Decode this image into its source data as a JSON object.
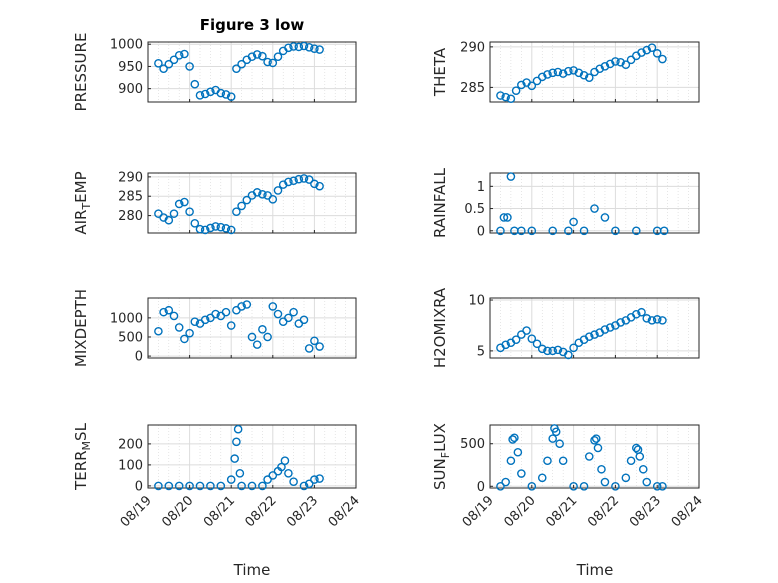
{
  "figure_title": "Figure 3 low",
  "xlabel": "Time",
  "x_ticklabels": [
    "08/19",
    "08/20",
    "08/21",
    "08/22",
    "08/23",
    "08/24"
  ],
  "marker_color": "#0072BD",
  "chart_data": [
    {
      "type": "scatter",
      "ylabel": "PRESSURE",
      "xlim": [
        "08/19",
        "08/24"
      ],
      "ylim": [
        870,
        1005
      ],
      "yticks": [
        900,
        950,
        1000
      ],
      "grid": "on",
      "x": [
        "08/19 06:00",
        "08/19 09:00",
        "08/19 12:00",
        "08/19 15:00",
        "08/19 18:00",
        "08/19 21:00",
        "08/20 00:00",
        "08/20 03:00",
        "08/20 06:00",
        "08/20 09:00",
        "08/20 12:00",
        "08/20 15:00",
        "08/20 18:00",
        "08/20 21:00",
        "08/21 00:00",
        "08/21 03:00",
        "08/21 06:00",
        "08/21 09:00",
        "08/21 12:00",
        "08/21 15:00",
        "08/21 18:00",
        "08/21 21:00",
        "08/22 00:00",
        "08/22 03:00",
        "08/22 06:00",
        "08/22 09:00",
        "08/22 12:00",
        "08/22 15:00",
        "08/22 18:00",
        "08/22 21:00",
        "08/23 00:00",
        "08/23 03:00"
      ],
      "y": [
        957,
        945,
        955,
        965,
        975,
        978,
        950,
        910,
        885,
        888,
        893,
        897,
        890,
        887,
        882,
        945,
        955,
        965,
        972,
        977,
        973,
        960,
        958,
        972,
        985,
        992,
        995,
        994,
        996,
        993,
        990,
        988
      ]
    },
    {
      "type": "scatter",
      "ylabel": "THETA",
      "xlim": [
        "08/19",
        "08/24"
      ],
      "ylim": [
        283.2,
        290.6
      ],
      "yticks": [
        285,
        290
      ],
      "grid": "on",
      "x": [
        "08/19 06:00",
        "08/19 09:00",
        "08/19 12:00",
        "08/19 15:00",
        "08/19 18:00",
        "08/19 21:00",
        "08/20 00:00",
        "08/20 03:00",
        "08/20 06:00",
        "08/20 09:00",
        "08/20 12:00",
        "08/20 15:00",
        "08/20 18:00",
        "08/20 21:00",
        "08/21 00:00",
        "08/21 03:00",
        "08/21 06:00",
        "08/21 09:00",
        "08/21 12:00",
        "08/21 15:00",
        "08/21 18:00",
        "08/21 21:00",
        "08/22 00:00",
        "08/22 03:00",
        "08/22 06:00",
        "08/22 09:00",
        "08/22 12:00",
        "08/22 15:00",
        "08/22 18:00",
        "08/22 21:00",
        "08/23 00:00",
        "08/23 03:00"
      ],
      "y": [
        284.0,
        283.8,
        283.6,
        284.6,
        285.3,
        285.6,
        285.2,
        285.8,
        286.3,
        286.6,
        286.8,
        286.9,
        286.7,
        287.0,
        287.1,
        286.8,
        286.5,
        286.2,
        286.9,
        287.3,
        287.6,
        287.9,
        288.2,
        288.1,
        287.8,
        288.4,
        288.9,
        289.3,
        289.6,
        289.9,
        289.2,
        288.5
      ]
    },
    {
      "type": "scatter",
      "ylabel": "AIR_TEMP",
      "xlim": [
        "08/19",
        "08/24"
      ],
      "ylim": [
        275.5,
        291
      ],
      "yticks": [
        280,
        285,
        290
      ],
      "grid": "on",
      "x": [
        "08/19 06:00",
        "08/19 09:00",
        "08/19 12:00",
        "08/19 15:00",
        "08/19 18:00",
        "08/19 21:00",
        "08/20 00:00",
        "08/20 03:00",
        "08/20 06:00",
        "08/20 09:00",
        "08/20 12:00",
        "08/20 15:00",
        "08/20 18:00",
        "08/20 21:00",
        "08/21 00:00",
        "08/21 03:00",
        "08/21 06:00",
        "08/21 09:00",
        "08/21 12:00",
        "08/21 15:00",
        "08/21 18:00",
        "08/21 21:00",
        "08/22 00:00",
        "08/22 03:00",
        "08/22 06:00",
        "08/22 09:00",
        "08/22 12:00",
        "08/22 15:00",
        "08/22 18:00",
        "08/22 21:00",
        "08/23 00:00",
        "08/23 03:00"
      ],
      "y": [
        280.5,
        279.5,
        278.8,
        280.5,
        283.0,
        283.5,
        281.0,
        278.0,
        276.5,
        276.3,
        276.8,
        277.2,
        277.0,
        276.7,
        276.3,
        281.0,
        282.5,
        284.0,
        285.2,
        286.0,
        285.5,
        285.2,
        284.2,
        286.5,
        288.0,
        288.7,
        289.0,
        289.4,
        289.6,
        289.3,
        288.2,
        287.6
      ]
    },
    {
      "type": "scatter",
      "ylabel": "RAINFALL",
      "xlim": [
        "08/19",
        "08/24"
      ],
      "ylim": [
        -0.05,
        1.3
      ],
      "yticks": [
        0,
        0.5,
        1
      ],
      "ytick_labels": [
        "0",
        "0.5",
        "1"
      ],
      "grid": "on",
      "x": [
        "08/19 06:00",
        "08/19 08:00",
        "08/19 10:00",
        "08/19 12:00",
        "08/19 14:00",
        "08/19 18:00",
        "08/20 00:00",
        "08/20 12:00",
        "08/20 21:00",
        "08/21 00:00",
        "08/21 06:00",
        "08/21 12:00",
        "08/21 18:00",
        "08/22 00:00",
        "08/22 12:00",
        "08/23 00:00",
        "08/23 04:00"
      ],
      "y": [
        0,
        0.3,
        0.3,
        1.22,
        0,
        0,
        0,
        0,
        0,
        0.2,
        0,
        0.5,
        0.3,
        0,
        0,
        0,
        0
      ]
    },
    {
      "type": "scatter",
      "ylabel": "MIXDEPTH",
      "xlim": [
        "08/19",
        "08/24"
      ],
      "ylim": [
        -50,
        1520
      ],
      "yticks": [
        0,
        500,
        1000
      ],
      "grid": "on",
      "x": [
        "08/19 06:00",
        "08/19 09:00",
        "08/19 12:00",
        "08/19 15:00",
        "08/19 18:00",
        "08/19 21:00",
        "08/20 00:00",
        "08/20 03:00",
        "08/20 06:00",
        "08/20 09:00",
        "08/20 12:00",
        "08/20 15:00",
        "08/20 18:00",
        "08/20 21:00",
        "08/21 00:00",
        "08/21 03:00",
        "08/21 06:00",
        "08/21 09:00",
        "08/21 12:00",
        "08/21 15:00",
        "08/21 18:00",
        "08/21 21:00",
        "08/22 00:00",
        "08/22 03:00",
        "08/22 06:00",
        "08/22 09:00",
        "08/22 12:00",
        "08/22 15:00",
        "08/22 18:00",
        "08/22 21:00",
        "08/23 00:00",
        "08/23 03:00"
      ],
      "y": [
        650,
        1150,
        1200,
        1050,
        750,
        450,
        600,
        900,
        850,
        950,
        1000,
        1100,
        1050,
        1150,
        800,
        1200,
        1300,
        1350,
        500,
        300,
        700,
        500,
        1300,
        1100,
        900,
        1000,
        1150,
        850,
        950,
        200,
        400,
        250
      ]
    },
    {
      "type": "scatter",
      "ylabel": "H2OMIXRA",
      "xlim": [
        "08/19",
        "08/24"
      ],
      "ylim": [
        4.3,
        10.2
      ],
      "yticks": [
        5,
        10
      ],
      "grid": "on",
      "x": [
        "08/19 06:00",
        "08/19 09:00",
        "08/19 12:00",
        "08/19 15:00",
        "08/19 18:00",
        "08/19 21:00",
        "08/20 00:00",
        "08/20 03:00",
        "08/20 06:00",
        "08/20 09:00",
        "08/20 12:00",
        "08/20 15:00",
        "08/20 18:00",
        "08/20 21:00",
        "08/21 00:00",
        "08/21 03:00",
        "08/21 06:00",
        "08/21 09:00",
        "08/21 12:00",
        "08/21 15:00",
        "08/21 18:00",
        "08/21 21:00",
        "08/22 00:00",
        "08/22 03:00",
        "08/22 06:00",
        "08/22 09:00",
        "08/22 12:00",
        "08/22 15:00",
        "08/22 18:00",
        "08/22 21:00",
        "08/23 00:00",
        "08/23 03:00"
      ],
      "y": [
        5.3,
        5.6,
        5.8,
        6.1,
        6.6,
        7.0,
        6.2,
        5.7,
        5.2,
        5.0,
        5.0,
        5.1,
        4.9,
        4.6,
        5.3,
        5.8,
        6.1,
        6.4,
        6.6,
        6.8,
        7.1,
        7.3,
        7.5,
        7.8,
        8.0,
        8.3,
        8.6,
        8.8,
        8.2,
        8.0,
        8.1,
        8.0
      ]
    },
    {
      "type": "scatter",
      "ylabel": "TERR_MSL",
      "xlim": [
        "08/19",
        "08/24"
      ],
      "ylim": [
        -10,
        290
      ],
      "yticks": [
        0,
        100,
        200
      ],
      "grid": "on",
      "x": [
        "08/19 06:00",
        "08/19 12:00",
        "08/19 18:00",
        "08/20 00:00",
        "08/20 06:00",
        "08/20 12:00",
        "08/20 18:00",
        "08/21 00:00",
        "08/21 02:00",
        "08/21 03:00",
        "08/21 04:00",
        "08/21 05:00",
        "08/21 06:00",
        "08/21 12:00",
        "08/21 18:00",
        "08/21 21:00",
        "08/22 00:00",
        "08/22 03:00",
        "08/22 05:00",
        "08/22 07:00",
        "08/22 09:00",
        "08/22 12:00",
        "08/22 18:00",
        "08/22 21:00",
        "08/23 00:00",
        "08/23 03:00"
      ],
      "y": [
        0,
        0,
        0,
        0,
        0,
        0,
        0,
        30,
        130,
        210,
        270,
        60,
        0,
        0,
        0,
        30,
        50,
        70,
        90,
        120,
        60,
        20,
        0,
        10,
        30,
        35
      ]
    },
    {
      "type": "scatter",
      "ylabel": "SUN_FLUX",
      "xlim": [
        "08/19",
        "08/24"
      ],
      "ylim": [
        -20,
        720
      ],
      "yticks": [
        0,
        500
      ],
      "grid": "on",
      "x": [
        "08/19 06:00",
        "08/19 09:00",
        "08/19 12:00",
        "08/19 13:00",
        "08/19 14:00",
        "08/19 16:00",
        "08/19 18:00",
        "08/20 00:00",
        "08/20 06:00",
        "08/20 09:00",
        "08/20 12:00",
        "08/20 13:00",
        "08/20 14:00",
        "08/20 16:00",
        "08/20 18:00",
        "08/21 00:00",
        "08/21 06:00",
        "08/21 09:00",
        "08/21 12:00",
        "08/21 13:00",
        "08/21 14:00",
        "08/21 16:00",
        "08/21 18:00",
        "08/22 00:00",
        "08/22 06:00",
        "08/22 09:00",
        "08/22 12:00",
        "08/22 13:00",
        "08/22 14:00",
        "08/22 16:00",
        "08/22 18:00",
        "08/23 00:00",
        "08/23 03:00"
      ],
      "y": [
        0,
        50,
        300,
        550,
        570,
        400,
        150,
        0,
        100,
        300,
        560,
        680,
        640,
        500,
        300,
        0,
        0,
        350,
        540,
        560,
        450,
        200,
        50,
        0,
        100,
        300,
        450,
        430,
        350,
        200,
        50,
        0,
        0
      ]
    }
  ]
}
